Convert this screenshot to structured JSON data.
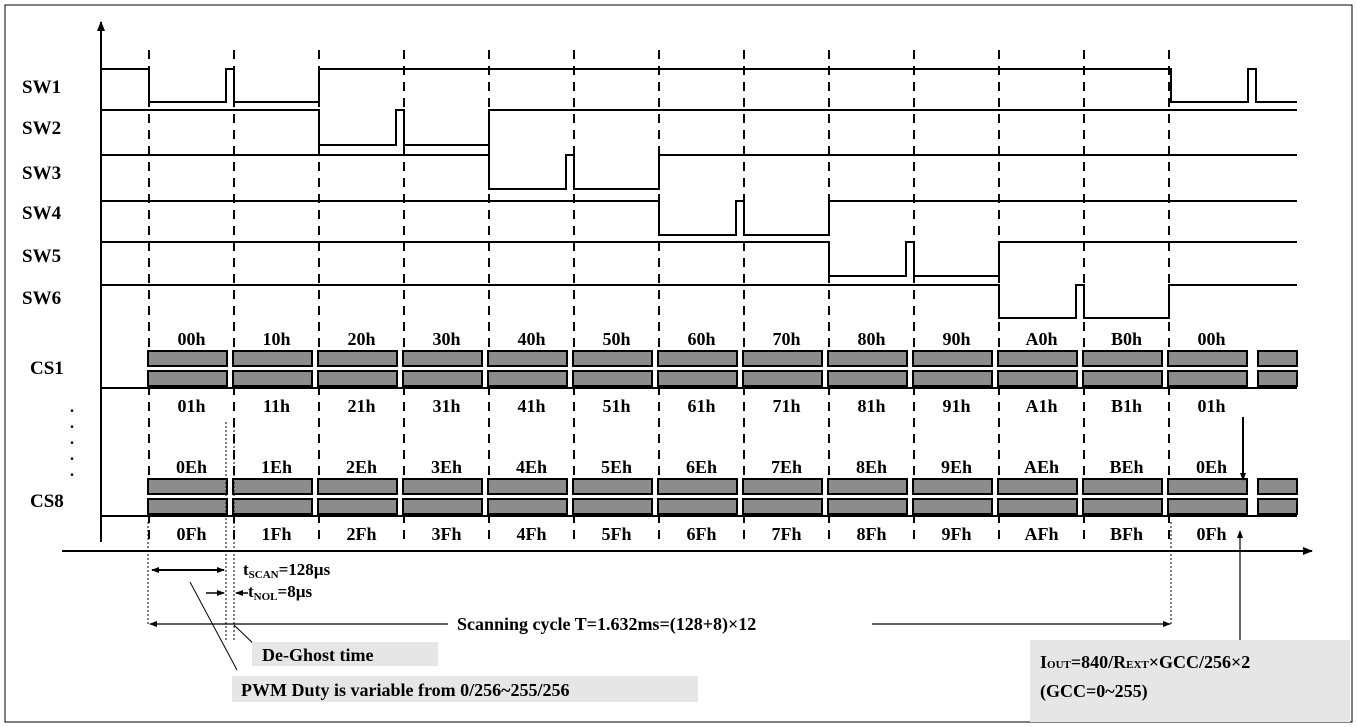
{
  "switch_labels": [
    "SW1",
    "SW2",
    "SW3",
    "SW4",
    "SW5",
    "SW6"
  ],
  "cs_labels": {
    "cs1": "CS1",
    "cs8": "CS8"
  },
  "vdots": [
    ".",
    ".",
    ".",
    ".",
    "."
  ],
  "cs1_top_regs": [
    "00h",
    "10h",
    "20h",
    "30h",
    "40h",
    "50h",
    "60h",
    "70h",
    "80h",
    "90h",
    "A0h",
    "B0h",
    "00h"
  ],
  "cs1_bot_regs": [
    "01h",
    "11h",
    "21h",
    "31h",
    "41h",
    "51h",
    "61h",
    "71h",
    "81h",
    "91h",
    "A1h",
    "B1h",
    "01h"
  ],
  "cs8_top_regs": [
    "0Eh",
    "1Eh",
    "2Eh",
    "3Eh",
    "4Eh",
    "5Eh",
    "6Eh",
    "7Eh",
    "8Eh",
    "9Eh",
    "AEh",
    "BEh",
    "0Eh"
  ],
  "cs8_bot_regs": [
    "0Fh",
    "1Fh",
    "2Fh",
    "3Fh",
    "4Fh",
    "5Fh",
    "6Fh",
    "7Fh",
    "8Fh",
    "9Fh",
    "AFh",
    "BFh",
    "0Fh"
  ],
  "tscan": {
    "t": "t",
    "sub": "SCAN",
    "val": "=128µs"
  },
  "tnol": {
    "t": "t",
    "sub": "NOL",
    "val": "=8µs"
  },
  "scan_cycle": "Scanning cycle T=1.632ms=(128+8)×12",
  "deghost": "De-Ghost time",
  "pwm_duty": "PWM Duty is variable from 0/256~255/256",
  "iout": {
    "i": "I",
    "i_sub": "OUT",
    "eq": "=840/R",
    "r_sub": "EXT",
    "rest": "×GCC/256×2"
  },
  "gcc_range": "(GCC=0~255)",
  "colors": {
    "bar": "#8c8c8c",
    "line": "#000000",
    "note_bg": "#e6e6e6"
  }
}
